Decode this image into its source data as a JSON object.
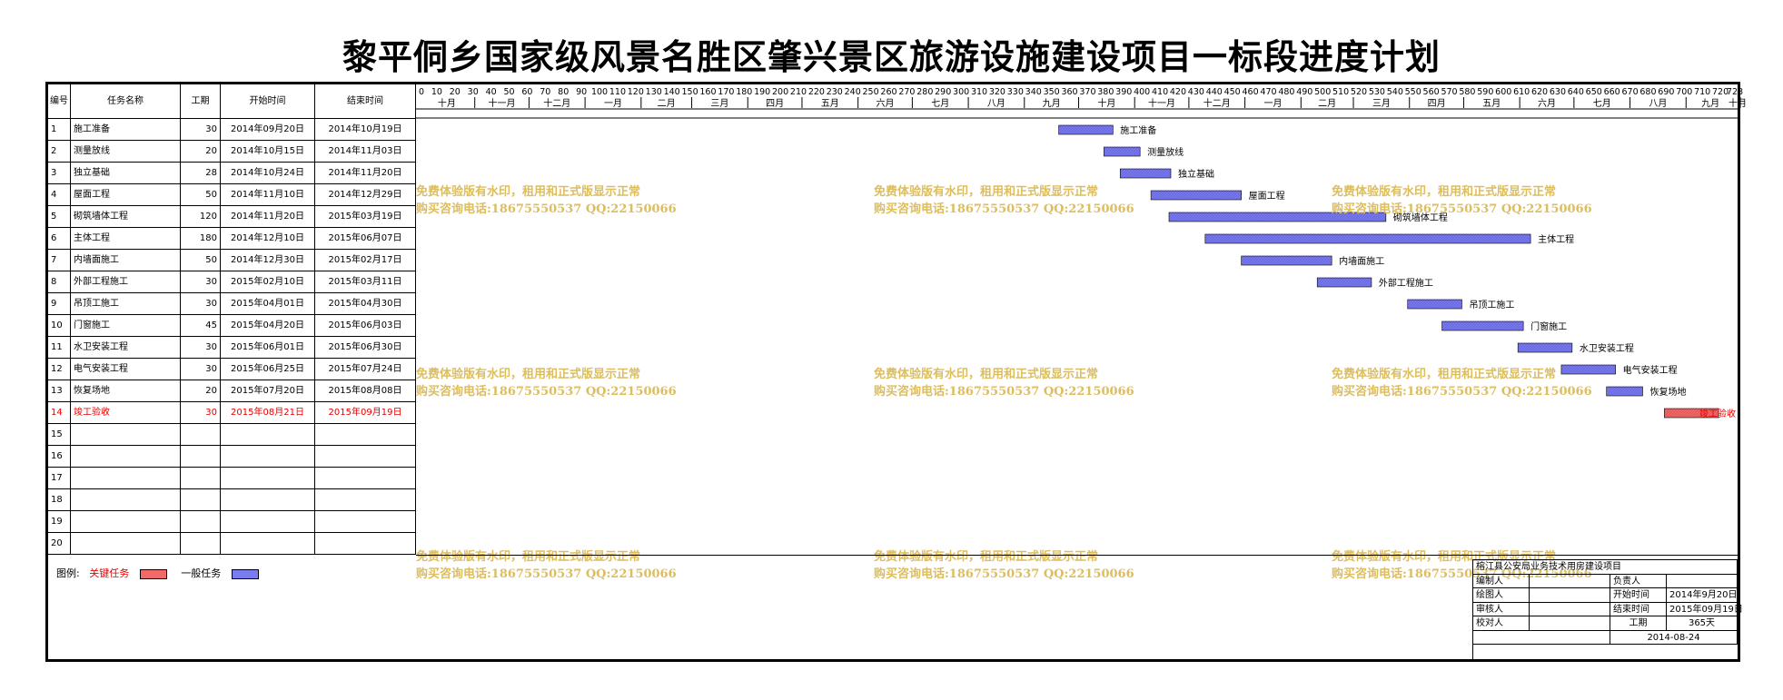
{
  "title": "黎平侗乡国家级风景名胜区肇兴景区旅游设施建设项目一标段进度计划",
  "table": {
    "headers": {
      "num": "编号",
      "name": "任务名称",
      "duration": "工期",
      "start": "开始时间",
      "end": "结束时间"
    },
    "rows": [
      {
        "num": "1",
        "name": "施工准备",
        "duration": "30",
        "start": "2014年09月20日",
        "end": "2014年10月19日",
        "critical": false
      },
      {
        "num": "2",
        "name": "测量放线",
        "duration": "20",
        "start": "2014年10月15日",
        "end": "2014年11月03日",
        "critical": false
      },
      {
        "num": "3",
        "name": "独立基础",
        "duration": "28",
        "start": "2014年10月24日",
        "end": "2014年11月20日",
        "critical": false
      },
      {
        "num": "4",
        "name": "屋面工程",
        "duration": "50",
        "start": "2014年11月10日",
        "end": "2014年12月29日",
        "critical": false
      },
      {
        "num": "5",
        "name": "砌筑墙体工程",
        "duration": "120",
        "start": "2014年11月20日",
        "end": "2015年03月19日",
        "critical": false
      },
      {
        "num": "6",
        "name": "主体工程",
        "duration": "180",
        "start": "2014年12月10日",
        "end": "2015年06月07日",
        "critical": false
      },
      {
        "num": "7",
        "name": "内墙面施工",
        "duration": "50",
        "start": "2014年12月30日",
        "end": "2015年02月17日",
        "critical": false
      },
      {
        "num": "8",
        "name": "外部工程施工",
        "duration": "30",
        "start": "2015年02月10日",
        "end": "2015年03月11日",
        "critical": false
      },
      {
        "num": "9",
        "name": "吊顶工施工",
        "duration": "30",
        "start": "2015年04月01日",
        "end": "2015年04月30日",
        "critical": false
      },
      {
        "num": "10",
        "name": "门窗施工",
        "duration": "45",
        "start": "2015年04月20日",
        "end": "2015年06月03日",
        "critical": false
      },
      {
        "num": "11",
        "name": "水卫安装工程",
        "duration": "30",
        "start": "2015年06月01日",
        "end": "2015年06月30日",
        "critical": false
      },
      {
        "num": "12",
        "name": "电气安装工程",
        "duration": "30",
        "start": "2015年06月25日",
        "end": "2015年07月24日",
        "critical": false
      },
      {
        "num": "13",
        "name": "恢复场地",
        "duration": "20",
        "start": "2015年07月20日",
        "end": "2015年08月08日",
        "critical": false
      },
      {
        "num": "14",
        "name": "竣工验收",
        "duration": "30",
        "start": "2015年08月21日",
        "end": "2015年09月19日",
        "critical": true
      },
      {
        "num": "15",
        "name": "",
        "duration": "",
        "start": "",
        "end": "",
        "critical": false
      },
      {
        "num": "16",
        "name": "",
        "duration": "",
        "start": "",
        "end": "",
        "critical": false
      },
      {
        "num": "17",
        "name": "",
        "duration": "",
        "start": "",
        "end": "",
        "critical": false
      },
      {
        "num": "18",
        "name": "",
        "duration": "",
        "start": "",
        "end": "",
        "critical": false
      },
      {
        "num": "19",
        "name": "",
        "duration": "",
        "start": "",
        "end": "",
        "critical": false
      },
      {
        "num": "20",
        "name": "",
        "duration": "",
        "start": "",
        "end": "",
        "critical": false
      }
    ]
  },
  "chart_data": {
    "type": "gantt",
    "day_ticks": [
      0,
      10,
      20,
      30,
      40,
      50,
      60,
      70,
      80,
      90,
      100,
      110,
      120,
      130,
      140,
      150,
      160,
      170,
      180,
      190,
      200,
      210,
      220,
      230,
      240,
      250,
      260,
      270,
      280,
      290,
      300,
      310,
      320,
      330,
      340,
      350,
      360,
      370,
      380,
      390,
      400,
      410,
      420,
      430,
      440,
      450,
      460,
      470,
      480,
      490,
      500,
      510,
      520,
      530,
      540,
      550,
      560,
      570,
      580,
      590,
      600,
      610,
      620,
      630,
      640,
      650,
      660,
      670,
      680,
      690,
      700,
      710,
      720,
      728
    ],
    "day_range": [
      0,
      728
    ],
    "months": [
      "十月",
      "十一月",
      "十二月",
      "一月",
      "二月",
      "三月",
      "四月",
      "五月",
      "六月",
      "七月",
      "八月",
      "九月",
      "十月",
      "十一月",
      "十二月",
      "一月",
      "二月",
      "三月",
      "四月",
      "五月",
      "六月",
      "七月",
      "八月",
      "九月",
      "十月"
    ],
    "month_days": [
      31,
      30,
      31,
      31,
      28,
      31,
      30,
      31,
      30,
      31,
      31,
      30,
      31,
      30,
      31,
      31,
      29,
      31,
      30,
      31,
      30,
      31,
      31,
      30,
      31
    ],
    "tasks": [
      {
        "label": "施工准备",
        "start_day": 354,
        "duration": 30
      },
      {
        "label": "测量放线",
        "start_day": 379,
        "duration": 20
      },
      {
        "label": "独立基础",
        "start_day": 388,
        "duration": 28
      },
      {
        "label": "屋面工程",
        "start_day": 405,
        "duration": 50
      },
      {
        "label": "砌筑墙体工程",
        "start_day": 415,
        "duration": 120
      },
      {
        "label": "主体工程",
        "start_day": 435,
        "duration": 180
      },
      {
        "label": "内墙面施工",
        "start_day": 455,
        "duration": 50
      },
      {
        "label": "外部工程施工",
        "start_day": 497,
        "duration": 30
      },
      {
        "label": "吊顶工施工",
        "start_day": 547,
        "duration": 30
      },
      {
        "label": "门窗施工",
        "start_day": 566,
        "duration": 45
      },
      {
        "label": "水卫安装工程",
        "start_day": 608,
        "duration": 30
      },
      {
        "label": "电气安装工程",
        "start_day": 632,
        "duration": 30
      },
      {
        "label": "恢复场地",
        "start_day": 657,
        "duration": 20
      },
      {
        "label": "竣工验收",
        "start_day": 689,
        "duration": 30,
        "critical": true
      }
    ],
    "colors": {
      "normal": "#7b7bf0",
      "critical": "#f06a6a"
    }
  },
  "watermark": {
    "line1": "免费体验版有水印，租用和正式版显示正常",
    "line2": "购买咨询电话:18675550537 QQ:22150066"
  },
  "legend": {
    "label": "图例:",
    "critical": "关键任务",
    "normal": "一般任务"
  },
  "infobox": {
    "project": "榕江县公安局业务技术用房建设项目",
    "editor_label": "编制人",
    "editor": "",
    "lead_label": "负责人",
    "lead": "",
    "drawer_label": "绘图人",
    "start_label": "开始时间",
    "start": "2014年9月20日",
    "reviewer_label": "审核人",
    "end_label": "结束时间",
    "end": "2015年09月19日",
    "checker_label": "校对人",
    "duration_label": "工期",
    "duration": "365天",
    "date": "2014-08-24"
  }
}
